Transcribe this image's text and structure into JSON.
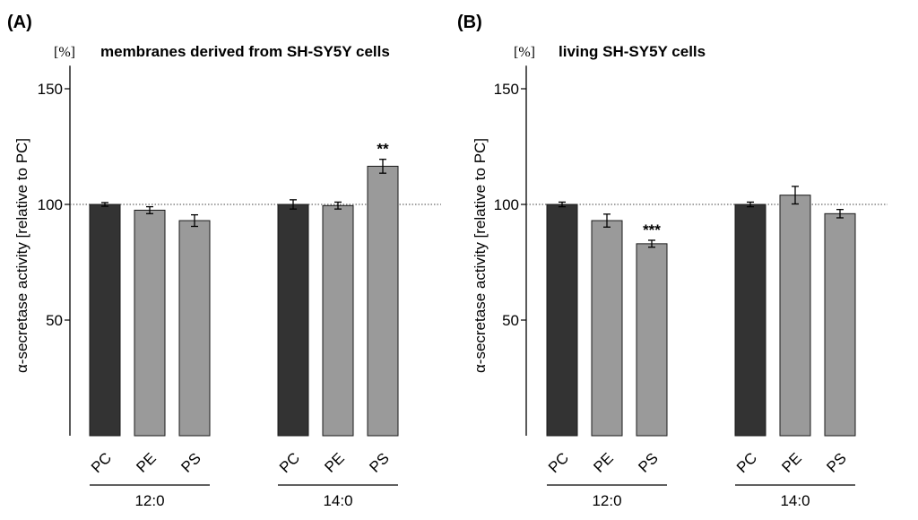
{
  "chart_data": [
    {
      "type": "bar",
      "panel_label": "(A)",
      "title": "membranes derived from SH-SY5Y cells",
      "unit": "[%]",
      "ylabel": "α-secretase activity [relative to PC]",
      "ylim": [
        0,
        160
      ],
      "yticks": [
        "50",
        "100",
        "150"
      ],
      "reference_line": 100,
      "groups": [
        {
          "name": "12:0",
          "bars": [
            {
              "label": "PC",
              "value": 100,
              "error": 0.8,
              "color": "#333333",
              "sig": ""
            },
            {
              "label": "PE",
              "value": 97.5,
              "error": 1.5,
              "color": "#9a9a9a",
              "sig": ""
            },
            {
              "label": "PS",
              "value": 93,
              "error": 2.5,
              "color": "#9a9a9a",
              "sig": ""
            }
          ]
        },
        {
          "name": "14:0",
          "bars": [
            {
              "label": "PC",
              "value": 100,
              "error": 2,
              "color": "#333333",
              "sig": ""
            },
            {
              "label": "PE",
              "value": 99.5,
              "error": 1.5,
              "color": "#9a9a9a",
              "sig": ""
            },
            {
              "label": "PS",
              "value": 116.5,
              "error": 3,
              "color": "#9a9a9a",
              "sig": "**"
            }
          ]
        }
      ]
    },
    {
      "type": "bar",
      "panel_label": "(B)",
      "title": "living SH-SY5Y cells",
      "unit": "[%]",
      "ylabel": "α-secretase activity [relative to PC]",
      "ylim": [
        0,
        160
      ],
      "yticks": [
        "50",
        "100",
        "150"
      ],
      "reference_line": 100,
      "groups": [
        {
          "name": "12:0",
          "bars": [
            {
              "label": "PC",
              "value": 100,
              "error": 1,
              "color": "#333333",
              "sig": ""
            },
            {
              "label": "PE",
              "value": 93,
              "error": 2.8,
              "color": "#9a9a9a",
              "sig": ""
            },
            {
              "label": "PS",
              "value": 83,
              "error": 1.5,
              "color": "#9a9a9a",
              "sig": "***"
            }
          ]
        },
        {
          "name": "14:0",
          "bars": [
            {
              "label": "PC",
              "value": 100,
              "error": 1,
              "color": "#333333",
              "sig": ""
            },
            {
              "label": "PE",
              "value": 104,
              "error": 3.8,
              "color": "#9a9a9a",
              "sig": ""
            },
            {
              "label": "PS",
              "value": 96,
              "error": 1.8,
              "color": "#9a9a9a",
              "sig": ""
            }
          ]
        }
      ]
    }
  ]
}
